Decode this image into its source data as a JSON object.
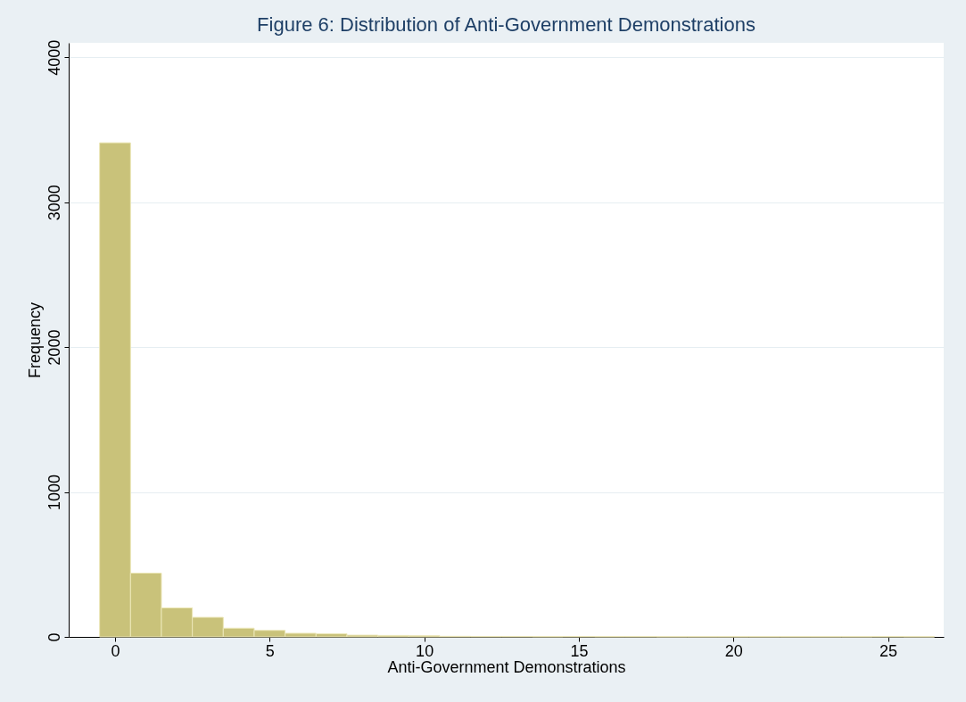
{
  "chart_data": {
    "type": "histogram",
    "title": "Figure 6: Distribution of Anti-Government Demonstrations",
    "xlabel": "Anti-Government Demonstrations",
    "ylabel": "Frequency",
    "bins": [
      -0.5,
      0.5,
      1.5,
      2.5,
      3.5,
      4.5,
      5.5,
      6.5,
      7.5,
      8.5,
      9.5,
      10.5,
      11.5,
      12.5,
      13.5,
      14.5,
      15.5,
      16.5,
      17.5,
      18.5,
      19.5,
      20.5,
      21.5,
      22.5,
      23.5,
      24.5,
      25.5,
      26.5
    ],
    "values": [
      3410,
      440,
      200,
      135,
      60,
      45,
      25,
      22,
      12,
      10,
      8,
      4,
      3,
      3,
      2,
      3,
      2,
      2,
      1,
      1,
      1,
      1,
      1,
      1,
      1,
      2,
      1
    ],
    "color": "#c9c27a",
    "xlim": [
      -1.5,
      26.8
    ],
    "ylim": [
      0,
      4100
    ],
    "xticks": [
      0,
      5,
      10,
      15,
      20,
      25
    ],
    "yticks": [
      0,
      1000,
      2000,
      3000,
      4000
    ],
    "grid": "y"
  }
}
